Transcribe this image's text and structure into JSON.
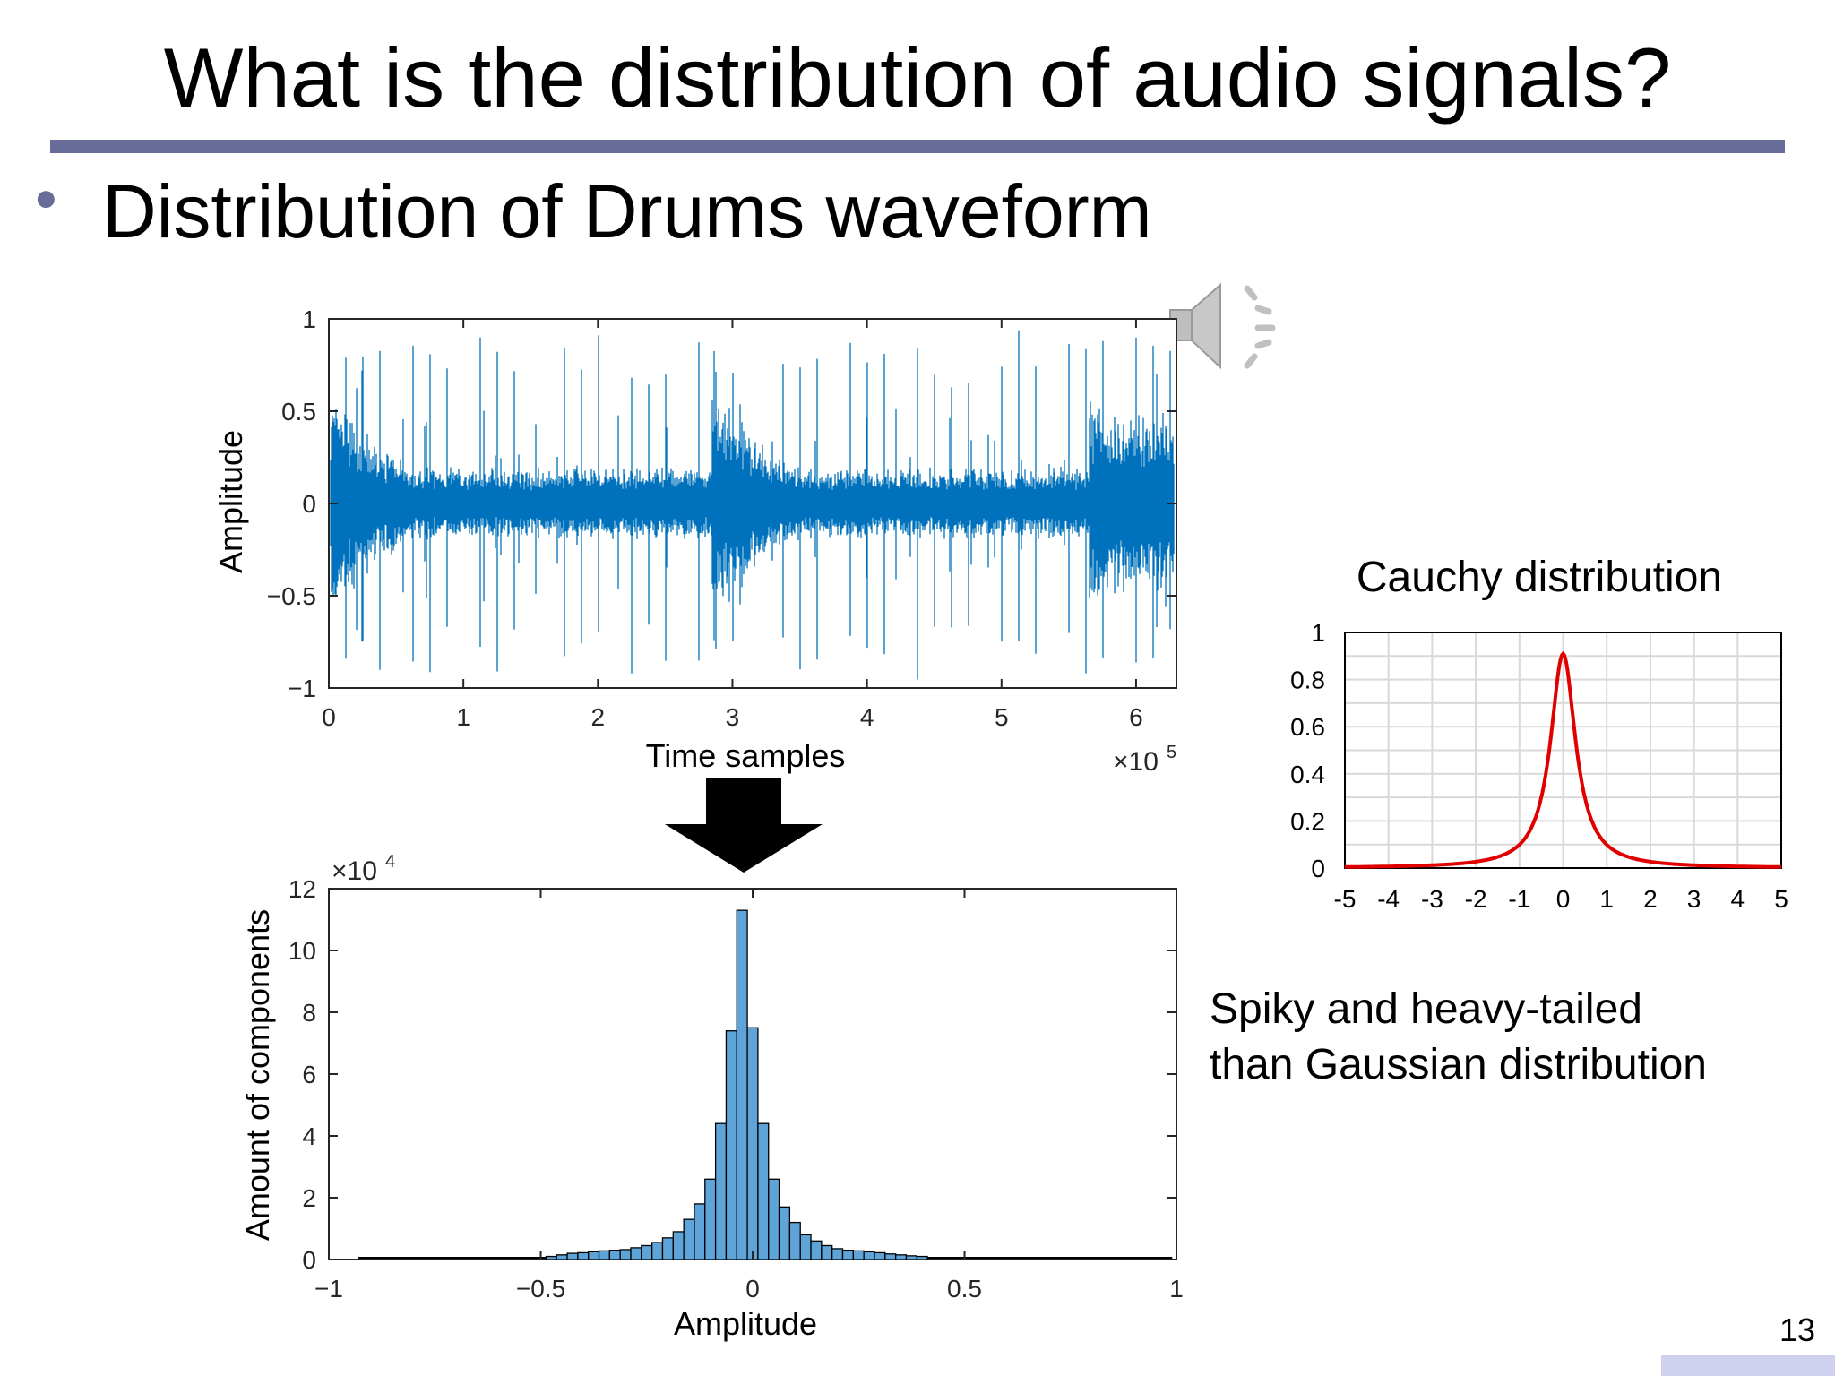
{
  "slide": {
    "title": "What is the distribution of audio signals?",
    "bullet": "Distribution of Drums waveform",
    "note_line1": "Spiky and heavy-tailed",
    "note_line2": "than Gaussian distribution",
    "page_number": "13",
    "speaker_icon": "speaker-icon"
  },
  "chart_data": [
    {
      "type": "line",
      "xlabel": "Time samples",
      "ylabel": "Amplitude",
      "x_multiplier": "×10",
      "x_exponent": "5",
      "xlim": [
        0,
        6.3
      ],
      "ylim": [
        -1,
        1
      ],
      "x_ticks": [
        "0",
        "1",
        "2",
        "3",
        "4",
        "5",
        "6"
      ],
      "y_ticks": [
        "-1",
        "-0.5",
        "0",
        "0.5",
        "1"
      ],
      "color": "#0072bd"
    },
    {
      "type": "bar",
      "xlabel": "Amplitude",
      "ylabel": "Amount of components",
      "y_multiplier": "×10",
      "y_exponent": "4",
      "xlim": [
        -1,
        1
      ],
      "ylim": [
        0,
        12
      ],
      "x_ticks": [
        "-1",
        "-0.5",
        "0",
        "0.5",
        "1"
      ],
      "y_ticks": [
        "0",
        "2",
        "4",
        "6",
        "8",
        "10",
        "12"
      ],
      "bin_centers": [
        -0.475,
        -0.45,
        -0.425,
        -0.4,
        -0.375,
        -0.35,
        -0.325,
        -0.3,
        -0.275,
        -0.25,
        -0.225,
        -0.2,
        -0.175,
        -0.15,
        -0.125,
        -0.1,
        -0.075,
        -0.05,
        -0.025,
        0,
        0.025,
        0.05,
        0.075,
        0.1,
        0.125,
        0.15,
        0.175,
        0.2,
        0.225,
        0.25,
        0.275,
        0.3,
        0.325,
        0.35,
        0.375,
        0.4
      ],
      "values": [
        0.1,
        0.15,
        0.2,
        0.22,
        0.25,
        0.28,
        0.3,
        0.32,
        0.38,
        0.45,
        0.55,
        0.7,
        0.9,
        1.3,
        1.8,
        2.6,
        4.4,
        7.4,
        11.3,
        7.5,
        4.4,
        2.6,
        1.7,
        1.2,
        0.8,
        0.6,
        0.45,
        0.35,
        0.3,
        0.28,
        0.25,
        0.22,
        0.18,
        0.15,
        0.12,
        0.1
      ],
      "color": "#5ea4d8"
    },
    {
      "type": "line",
      "title": "Cauchy distribution",
      "xlim": [
        -5,
        5
      ],
      "ylim": [
        0,
        1
      ],
      "x_ticks": [
        "-5",
        "-4",
        "-3",
        "-2",
        "-1",
        "0",
        "1",
        "2",
        "3",
        "4",
        "5"
      ],
      "y_ticks": [
        "0",
        "0.2",
        "0.4",
        "0.6",
        "0.8",
        "1"
      ],
      "gamma": 0.35,
      "peak": 0.91,
      "grid": true,
      "color": "#e00000"
    }
  ]
}
